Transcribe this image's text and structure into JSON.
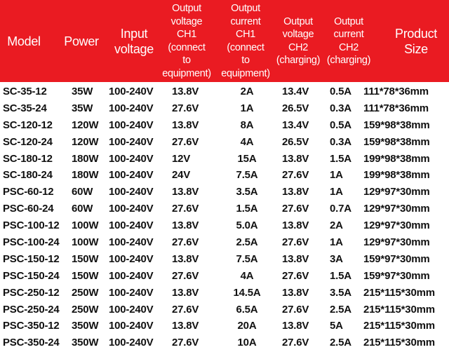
{
  "header_color": "#ea1b22",
  "columns": [
    "Model",
    "Power",
    "Input\nvoltage",
    "Output\nvoltage\nCH1\n(connect\nto\nequipment)",
    "Output\ncurrent\nCH1\n(connect\nto\nequipment)",
    "Output\nvoltage\nCH2\n(charging)",
    "Output\ncurrent\nCH2\n(charging)",
    "Product\nSize"
  ],
  "rows": [
    [
      "SC-35-12",
      "35W",
      "100-240V",
      "13.8V",
      "2A",
      "13.4V",
      "0.5A",
      "111*78*36mm"
    ],
    [
      "SC-35-24",
      "35W",
      "100-240V",
      "27.6V",
      "1A",
      "26.5V",
      "0.3A",
      "111*78*36mm"
    ],
    [
      "SC-120-12",
      "120W",
      "100-240V",
      "13.8V",
      "8A",
      "13.4V",
      "0.5A",
      "159*98*38mm"
    ],
    [
      "SC-120-24",
      "120W",
      "100-240V",
      "27.6V",
      "4A",
      "26.5V",
      "0.3A",
      "159*98*38mm"
    ],
    [
      "SC-180-12",
      "180W",
      "100-240V",
      "12V",
      "15A",
      "13.8V",
      "1.5A",
      "199*98*38mm"
    ],
    [
      "SC-180-24",
      "180W",
      "100-240V",
      "24V",
      "7.5A",
      "27.6V",
      "1A",
      "199*98*38mm"
    ],
    [
      "PSC-60-12",
      "60W",
      "100-240V",
      "13.8V",
      "3.5A",
      "13.8V",
      "1A",
      "129*97*30mm"
    ],
    [
      "PSC-60-24",
      "60W",
      "100-240V",
      "27.6V",
      "1.5A",
      "27.6V",
      "0.7A",
      "129*97*30mm"
    ],
    [
      "PSC-100-12",
      "100W",
      "100-240V",
      "13.8V",
      "5.0A",
      "13.8V",
      "2A",
      "129*97*30mm"
    ],
    [
      "PSC-100-24",
      "100W",
      "100-240V",
      "27.6V",
      "2.5A",
      "27.6V",
      "1A",
      "129*97*30mm"
    ],
    [
      "PSC-150-12",
      "150W",
      "100-240V",
      "13.8V",
      "7.5A",
      "13.8V",
      "3A",
      "159*97*30mm"
    ],
    [
      "PSC-150-24",
      "150W",
      "100-240V",
      "27.6V",
      "4A",
      "27.6V",
      "1.5A",
      "159*97*30mm"
    ],
    [
      "PSC-250-12",
      "250W",
      "100-240V",
      "13.8V",
      "14.5A",
      "13.8V",
      "3.5A",
      "215*115*30mm"
    ],
    [
      "PSC-250-24",
      "250W",
      "100-240V",
      "27.6V",
      "6.5A",
      "27.6V",
      "2.5A",
      "215*115*30mm"
    ],
    [
      "PSC-350-12",
      "350W",
      "100-240V",
      "13.8V",
      "20A",
      "13.8V",
      "5A",
      "215*115*30mm"
    ],
    [
      "PSC-350-24",
      "350W",
      "100-240V",
      "27.6V",
      "10A",
      "27.6V",
      "2.5A",
      "215*115*30mm"
    ]
  ]
}
